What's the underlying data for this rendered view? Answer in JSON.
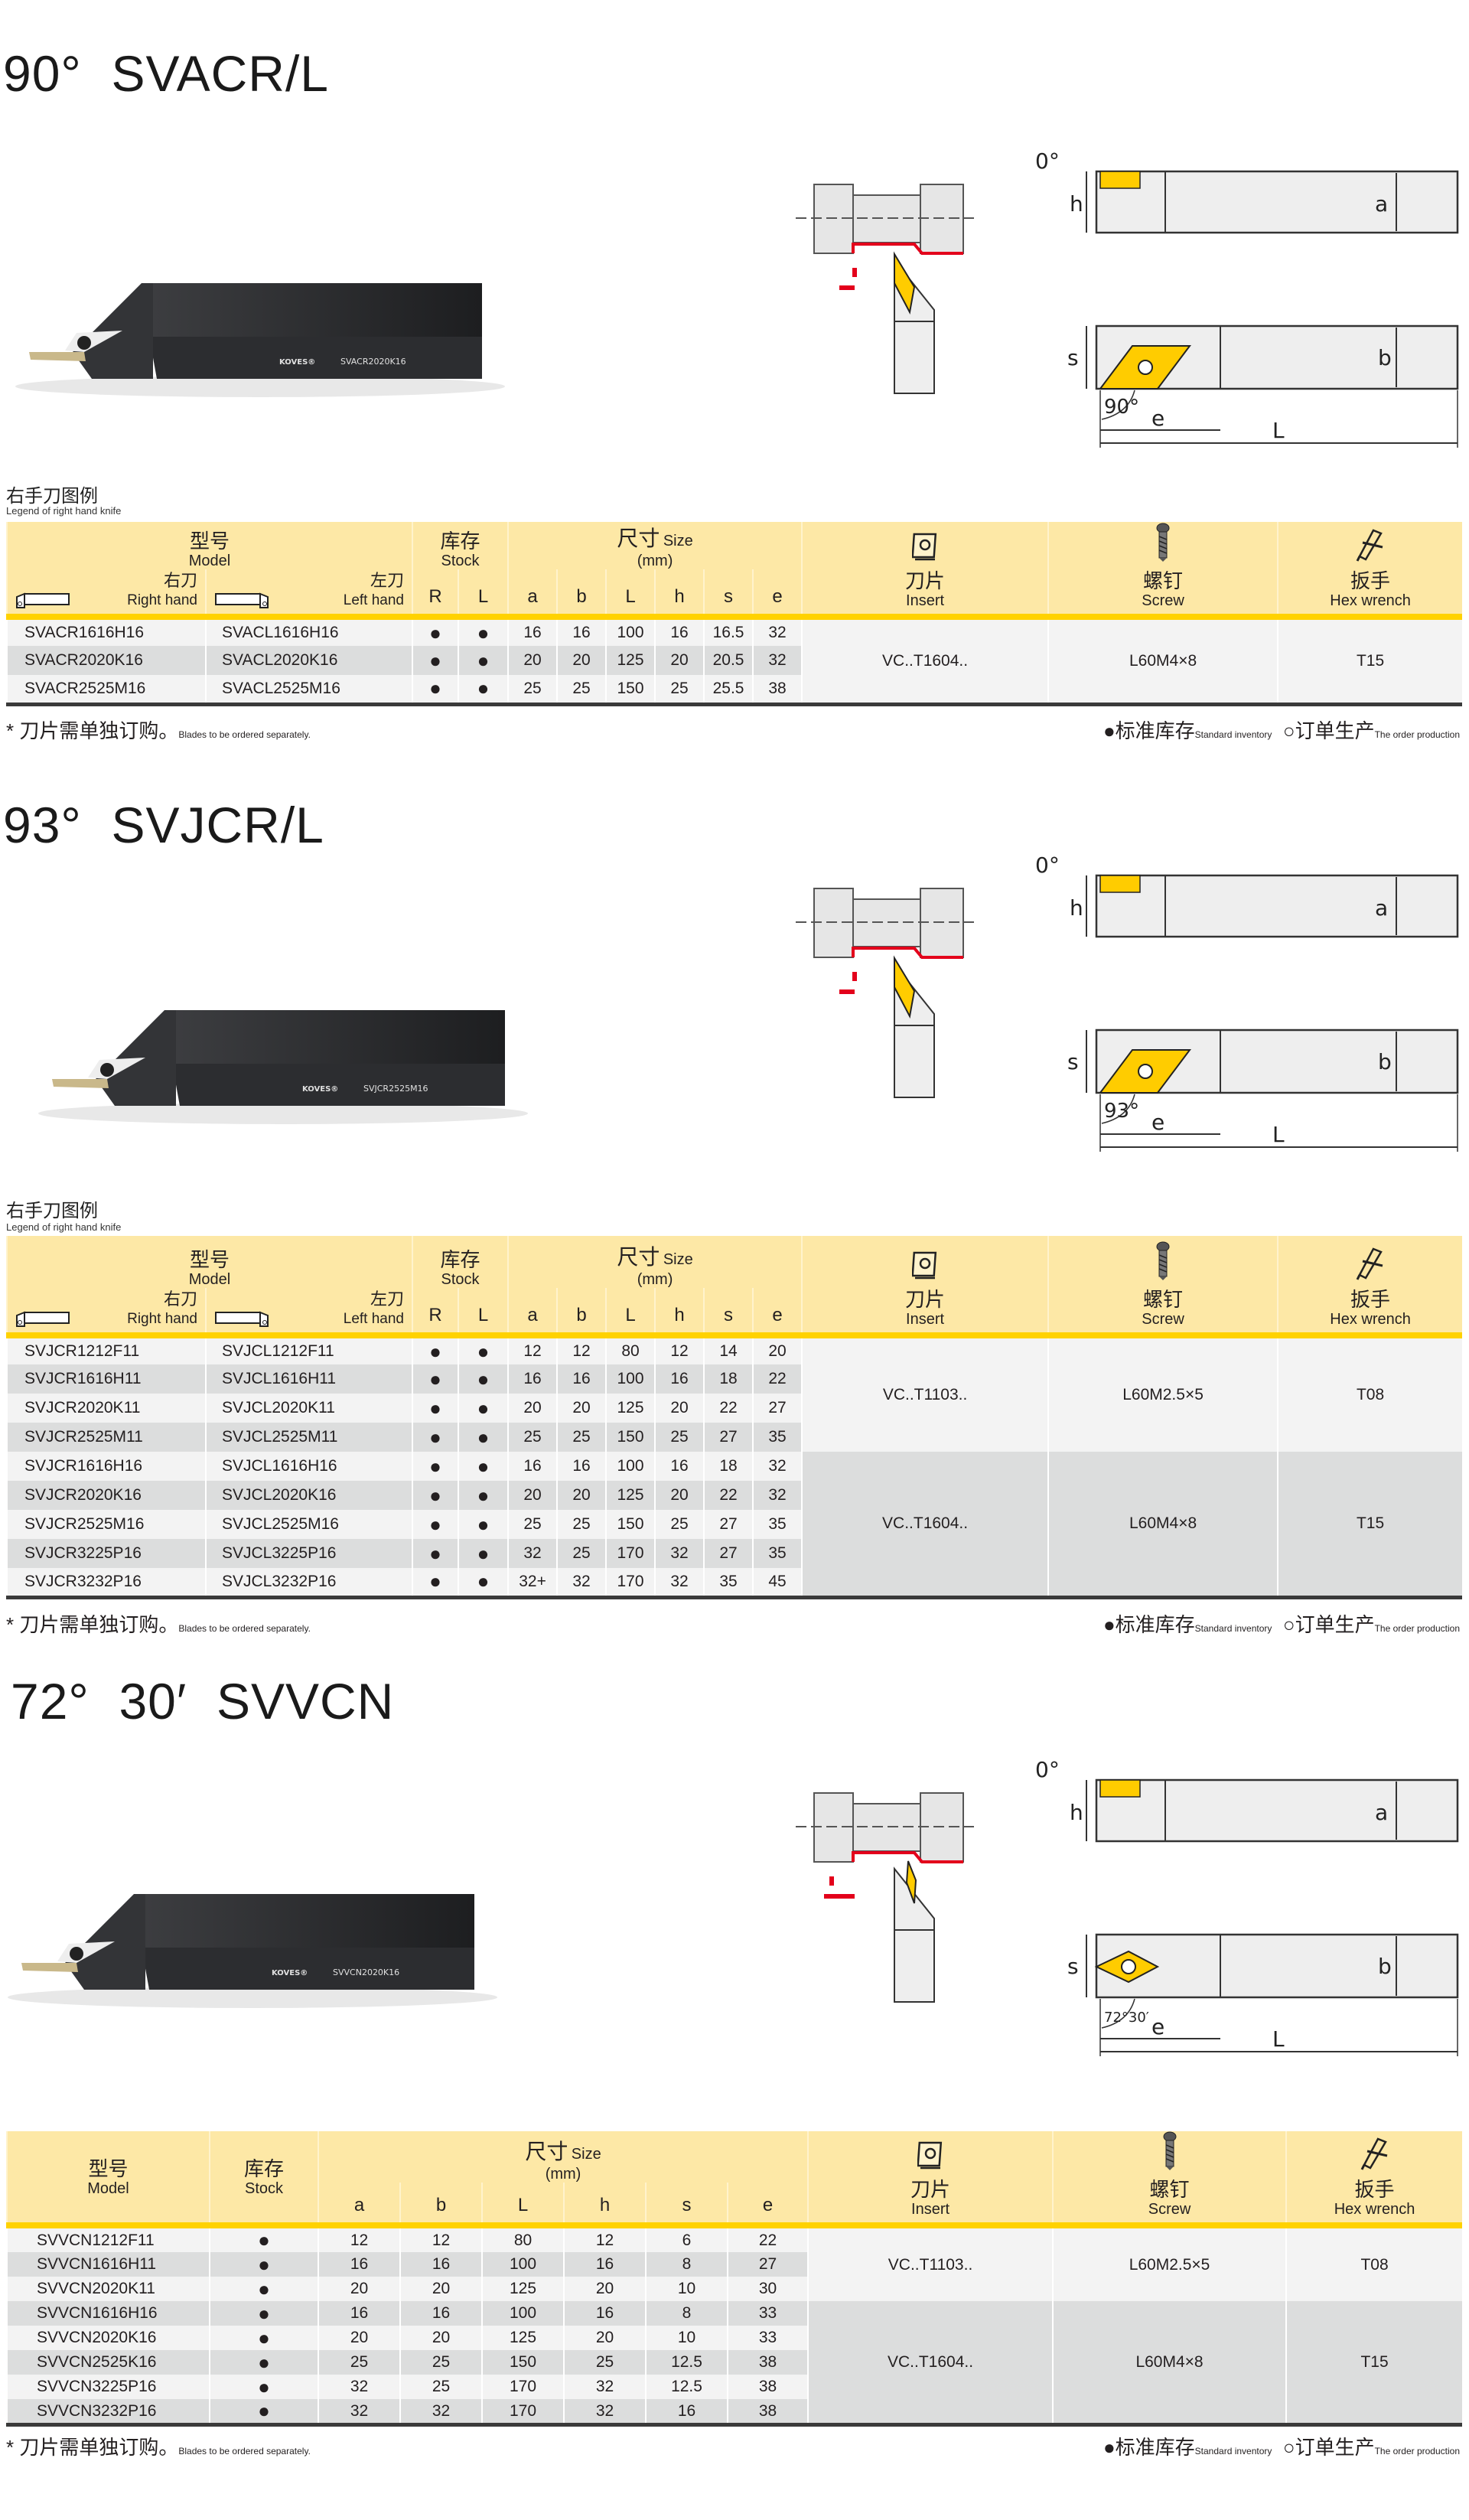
{
  "colors": {
    "header_bg": "#fde8a6",
    "header_rule": "#ffd200",
    "insert_yellow": "#ffcc00",
    "row_light": "#f3f3f3",
    "row_dark": "#dcdddd",
    "cut_red": "#e3001b"
  },
  "common": {
    "model_cn": "型号",
    "model_en": "Model",
    "right_cn": "右刀",
    "right_en": "Right hand",
    "left_cn": "左刀",
    "left_en": "Left hand",
    "stock_cn": "库存",
    "stock_en": "Stock",
    "stock_r": "R",
    "stock_l": "L",
    "size_cn": "尺寸",
    "size_en": "Size",
    "size_unit": "(mm)",
    "dims": [
      "a",
      "b",
      "L",
      "h",
      "s",
      "e"
    ],
    "insert_cn": "刀片",
    "insert_en": "Insert",
    "screw_cn": "螺钉",
    "screw_en": "Screw",
    "wrench_cn": "扳手",
    "wrench_en": "Hex wrench",
    "legend_cn": "右手刀图例",
    "legend_en": "Legend of right hand knife",
    "footnote_cn": "* 刀片需单独订购。",
    "footnote_en": "Blades to be ordered separately.",
    "std_mark": "●",
    "std_cn": "标准库存",
    "std_en": "Standard inventory",
    "order_mark": "○",
    "order_cn": "订单生产",
    "order_en": "The order production"
  },
  "sections": [
    {
      "title": "90°  SVACR/L",
      "product": {
        "brand": "KOVES®",
        "model": "SVACR2020K16"
      },
      "diagram": {
        "top_angle": "0°",
        "h": "h",
        "a": "a",
        "s": "s",
        "b": "b",
        "bottom_angle": "90°",
        "e": "e",
        "L": "L"
      },
      "table": {
        "groups": [
          {
            "insert": "VC..T1604..",
            "screw": "L60M4×8",
            "wrench": "T15",
            "rows": [
              {
                "right": "SVACR1616H16",
                "left": "SVACL1616H16",
                "stock_r": "●",
                "stock_l": "●",
                "a": "16",
                "b": "16",
                "L": "100",
                "h": "16",
                "s": "16.5",
                "e": "32"
              },
              {
                "right": "SVACR2020K16",
                "left": "SVACL2020K16",
                "stock_r": "●",
                "stock_l": "●",
                "a": "20",
                "b": "20",
                "L": "125",
                "h": "20",
                "s": "20.5",
                "e": "32"
              },
              {
                "right": "SVACR2525M16",
                "left": "SVACL2525M16",
                "stock_r": "●",
                "stock_l": "●",
                "a": "25",
                "b": "25",
                "L": "150",
                "h": "25",
                "s": "25.5",
                "e": "38"
              }
            ]
          }
        ]
      }
    },
    {
      "title": "93°  SVJCR/L",
      "product": {
        "brand": "KOVES®",
        "model": "SVJCR2525M16"
      },
      "diagram": {
        "top_angle": "0°",
        "h": "h",
        "a": "a",
        "s": "s",
        "b": "b",
        "bottom_angle": "93°",
        "e": "e",
        "L": "L"
      },
      "table": {
        "groups": [
          {
            "insert": "VC..T1103..",
            "screw": "L60M2.5×5",
            "wrench": "T08",
            "rows": [
              {
                "right": "SVJCR1212F11",
                "left": "SVJCL1212F11",
                "stock_r": "●",
                "stock_l": "●",
                "a": "12",
                "b": "12",
                "L": "80",
                "h": "12",
                "s": "14",
                "e": "20"
              },
              {
                "right": "SVJCR1616H11",
                "left": "SVJCL1616H11",
                "stock_r": "●",
                "stock_l": "●",
                "a": "16",
                "b": "16",
                "L": "100",
                "h": "16",
                "s": "18",
                "e": "22"
              },
              {
                "right": "SVJCR2020K11",
                "left": "SVJCL2020K11",
                "stock_r": "●",
                "stock_l": "●",
                "a": "20",
                "b": "20",
                "L": "125",
                "h": "20",
                "s": "22",
                "e": "27"
              },
              {
                "right": "SVJCR2525M11",
                "left": "SVJCL2525M11",
                "stock_r": "●",
                "stock_l": "●",
                "a": "25",
                "b": "25",
                "L": "150",
                "h": "25",
                "s": "27",
                "e": "35"
              }
            ]
          },
          {
            "insert": "VC..T1604..",
            "screw": "L60M4×8",
            "wrench": "T15",
            "rows": [
              {
                "right": "SVJCR1616H16",
                "left": "SVJCL1616H16",
                "stock_r": "●",
                "stock_l": "●",
                "a": "16",
                "b": "16",
                "L": "100",
                "h": "16",
                "s": "18",
                "e": "32"
              },
              {
                "right": "SVJCR2020K16",
                "left": "SVJCL2020K16",
                "stock_r": "●",
                "stock_l": "●",
                "a": "20",
                "b": "20",
                "L": "125",
                "h": "20",
                "s": "22",
                "e": "32"
              },
              {
                "right": "SVJCR2525M16",
                "left": "SVJCL2525M16",
                "stock_r": "●",
                "stock_l": "●",
                "a": "25",
                "b": "25",
                "L": "150",
                "h": "25",
                "s": "27",
                "e": "35"
              },
              {
                "right": "SVJCR3225P16",
                "left": "SVJCL3225P16",
                "stock_r": "●",
                "stock_l": "●",
                "a": "32",
                "b": "25",
                "L": "170",
                "h": "32",
                "s": "27",
                "e": "35"
              },
              {
                "right": "SVJCR3232P16",
                "left": "SVJCL3232P16",
                "stock_r": "●",
                "stock_l": "●",
                "a": "32+",
                "b": "32",
                "L": "170",
                "h": "32",
                "s": "35",
                "e": "45"
              }
            ]
          }
        ]
      }
    },
    {
      "title": "72°  30′  SVVCN",
      "product": {
        "brand": "KOVES®",
        "model": "SVVCN2020K16"
      },
      "diagram": {
        "top_angle": "0°",
        "h": "h",
        "a": "a",
        "s": "s",
        "b": "b",
        "bottom_angle": "72°30′",
        "e": "e",
        "L": "L"
      },
      "table": {
        "groups": [
          {
            "insert": "VC..T1103..",
            "screw": "L60M2.5×5",
            "wrench": "T08",
            "rows": [
              {
                "model": "SVVCN1212F11",
                "stock": "●",
                "a": "12",
                "b": "12",
                "L": "80",
                "h": "12",
                "s": "6",
                "e": "22"
              },
              {
                "model": "SVVCN1616H11",
                "stock": "●",
                "a": "16",
                "b": "16",
                "L": "100",
                "h": "16",
                "s": "8",
                "e": "27"
              },
              {
                "model": "SVVCN2020K11",
                "stock": "●",
                "a": "20",
                "b": "20",
                "L": "125",
                "h": "20",
                "s": "10",
                "e": "30"
              }
            ]
          },
          {
            "insert": "VC..T1604..",
            "screw": "L60M4×8",
            "wrench": "T15",
            "rows": [
              {
                "model": "SVVCN1616H16",
                "stock": "●",
                "a": "16",
                "b": "16",
                "L": "100",
                "h": "16",
                "s": "8",
                "e": "33"
              },
              {
                "model": "SVVCN2020K16",
                "stock": "●",
                "a": "20",
                "b": "20",
                "L": "125",
                "h": "20",
                "s": "10",
                "e": "33"
              },
              {
                "model": "SVVCN2525K16",
                "stock": "●",
                "a": "25",
                "b": "25",
                "L": "150",
                "h": "25",
                "s": "12.5",
                "e": "38"
              },
              {
                "model": "SVVCN3225P16",
                "stock": "●",
                "a": "32",
                "b": "25",
                "L": "170",
                "h": "32",
                "s": "12.5",
                "e": "38"
              },
              {
                "model": "SVVCN3232P16",
                "stock": "●",
                "a": "32",
                "b": "32",
                "L": "170",
                "h": "32",
                "s": "16",
                "e": "38"
              }
            ]
          }
        ]
      }
    }
  ]
}
